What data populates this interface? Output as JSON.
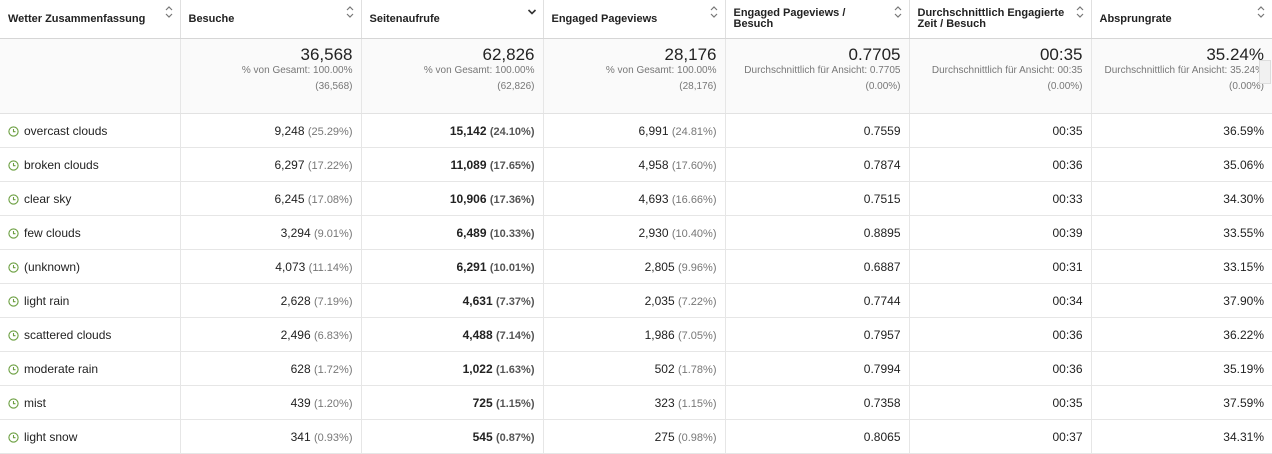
{
  "columns": [
    {
      "label": "Wetter Zusammenfassung",
      "sorted": false
    },
    {
      "label": "Besuche",
      "sorted": false
    },
    {
      "label": "Seitenaufrufe",
      "sorted": true
    },
    {
      "label": "Engaged Pageviews",
      "sorted": false
    },
    {
      "label": "Engaged Pageviews / Besuch",
      "sorted": false
    },
    {
      "label": "Durchschnittlich Engagierte Zeit / Besuch",
      "sorted": false
    },
    {
      "label": "Absprungrate",
      "sorted": false
    }
  ],
  "totals": [
    {
      "value": "36,568",
      "sub": "% von Gesamt: 100.00%",
      "paren": "(36,568)"
    },
    {
      "value": "62,826",
      "sub": "% von Gesamt: 100.00%",
      "paren": "(62,826)"
    },
    {
      "value": "28,176",
      "sub": "% von Gesamt: 100.00%",
      "paren": "(28,176)"
    },
    {
      "value": "0.7705",
      "sub": "Durchschnittlich für Ansicht: 0.7705",
      "paren": "(0.00%)"
    },
    {
      "value": "00:35",
      "sub": "Durchschnittlich für Ansicht: 00:35",
      "paren": "(0.00%)"
    },
    {
      "value": "35.24%",
      "sub": "Durchschnittlich für Ansicht: 35.24%",
      "paren": "(0.00%)"
    }
  ],
  "rows": [
    {
      "dim": "overcast clouds",
      "visits": "9,248",
      "visits_pct": "(25.29%)",
      "pv": "15,142",
      "pv_pct": "(24.10%)",
      "epv": "6,991",
      "epv_pct": "(24.81%)",
      "epv_per": "0.7559",
      "time": "00:35",
      "bounce": "36.59%"
    },
    {
      "dim": "broken clouds",
      "visits": "6,297",
      "visits_pct": "(17.22%)",
      "pv": "11,089",
      "pv_pct": "(17.65%)",
      "epv": "4,958",
      "epv_pct": "(17.60%)",
      "epv_per": "0.7874",
      "time": "00:36",
      "bounce": "35.06%"
    },
    {
      "dim": "clear sky",
      "visits": "6,245",
      "visits_pct": "(17.08%)",
      "pv": "10,906",
      "pv_pct": "(17.36%)",
      "epv": "4,693",
      "epv_pct": "(16.66%)",
      "epv_per": "0.7515",
      "time": "00:33",
      "bounce": "34.30%"
    },
    {
      "dim": "few clouds",
      "visits": "3,294",
      "visits_pct": "(9.01%)",
      "pv": "6,489",
      "pv_pct": "(10.33%)",
      "epv": "2,930",
      "epv_pct": "(10.40%)",
      "epv_per": "0.8895",
      "time": "00:39",
      "bounce": "33.55%"
    },
    {
      "dim": "(unknown)",
      "visits": "4,073",
      "visits_pct": "(11.14%)",
      "pv": "6,291",
      "pv_pct": "(10.01%)",
      "epv": "2,805",
      "epv_pct": "(9.96%)",
      "epv_per": "0.6887",
      "time": "00:31",
      "bounce": "33.15%"
    },
    {
      "dim": "light rain",
      "visits": "2,628",
      "visits_pct": "(7.19%)",
      "pv": "4,631",
      "pv_pct": "(7.37%)",
      "epv": "2,035",
      "epv_pct": "(7.22%)",
      "epv_per": "0.7744",
      "time": "00:34",
      "bounce": "37.90%"
    },
    {
      "dim": "scattered clouds",
      "visits": "2,496",
      "visits_pct": "(6.83%)",
      "pv": "4,488",
      "pv_pct": "(7.14%)",
      "epv": "1,986",
      "epv_pct": "(7.05%)",
      "epv_per": "0.7957",
      "time": "00:36",
      "bounce": "36.22%"
    },
    {
      "dim": "moderate rain",
      "visits": "628",
      "visits_pct": "(1.72%)",
      "pv": "1,022",
      "pv_pct": "(1.63%)",
      "epv": "502",
      "epv_pct": "(1.78%)",
      "epv_per": "0.7994",
      "time": "00:36",
      "bounce": "35.19%"
    },
    {
      "dim": "mist",
      "visits": "439",
      "visits_pct": "(1.20%)",
      "pv": "725",
      "pv_pct": "(1.15%)",
      "epv": "323",
      "epv_pct": "(1.15%)",
      "epv_per": "0.7358",
      "time": "00:35",
      "bounce": "37.59%"
    },
    {
      "dim": "light snow",
      "visits": "341",
      "visits_pct": "(0.93%)",
      "pv": "545",
      "pv_pct": "(0.87%)",
      "epv": "275",
      "epv_pct": "(0.98%)",
      "epv_per": "0.8065",
      "time": "00:37",
      "bounce": "34.31%"
    }
  ],
  "icons": {
    "row_icon": "clock-icon",
    "sort_icon": "sort-arrows-icon",
    "sorted_icon": "chevron-down-icon"
  },
  "colors": {
    "clock_icon": "#6a9e3f",
    "totals_bg": "#fafafa",
    "border": "#e6e6e6"
  }
}
